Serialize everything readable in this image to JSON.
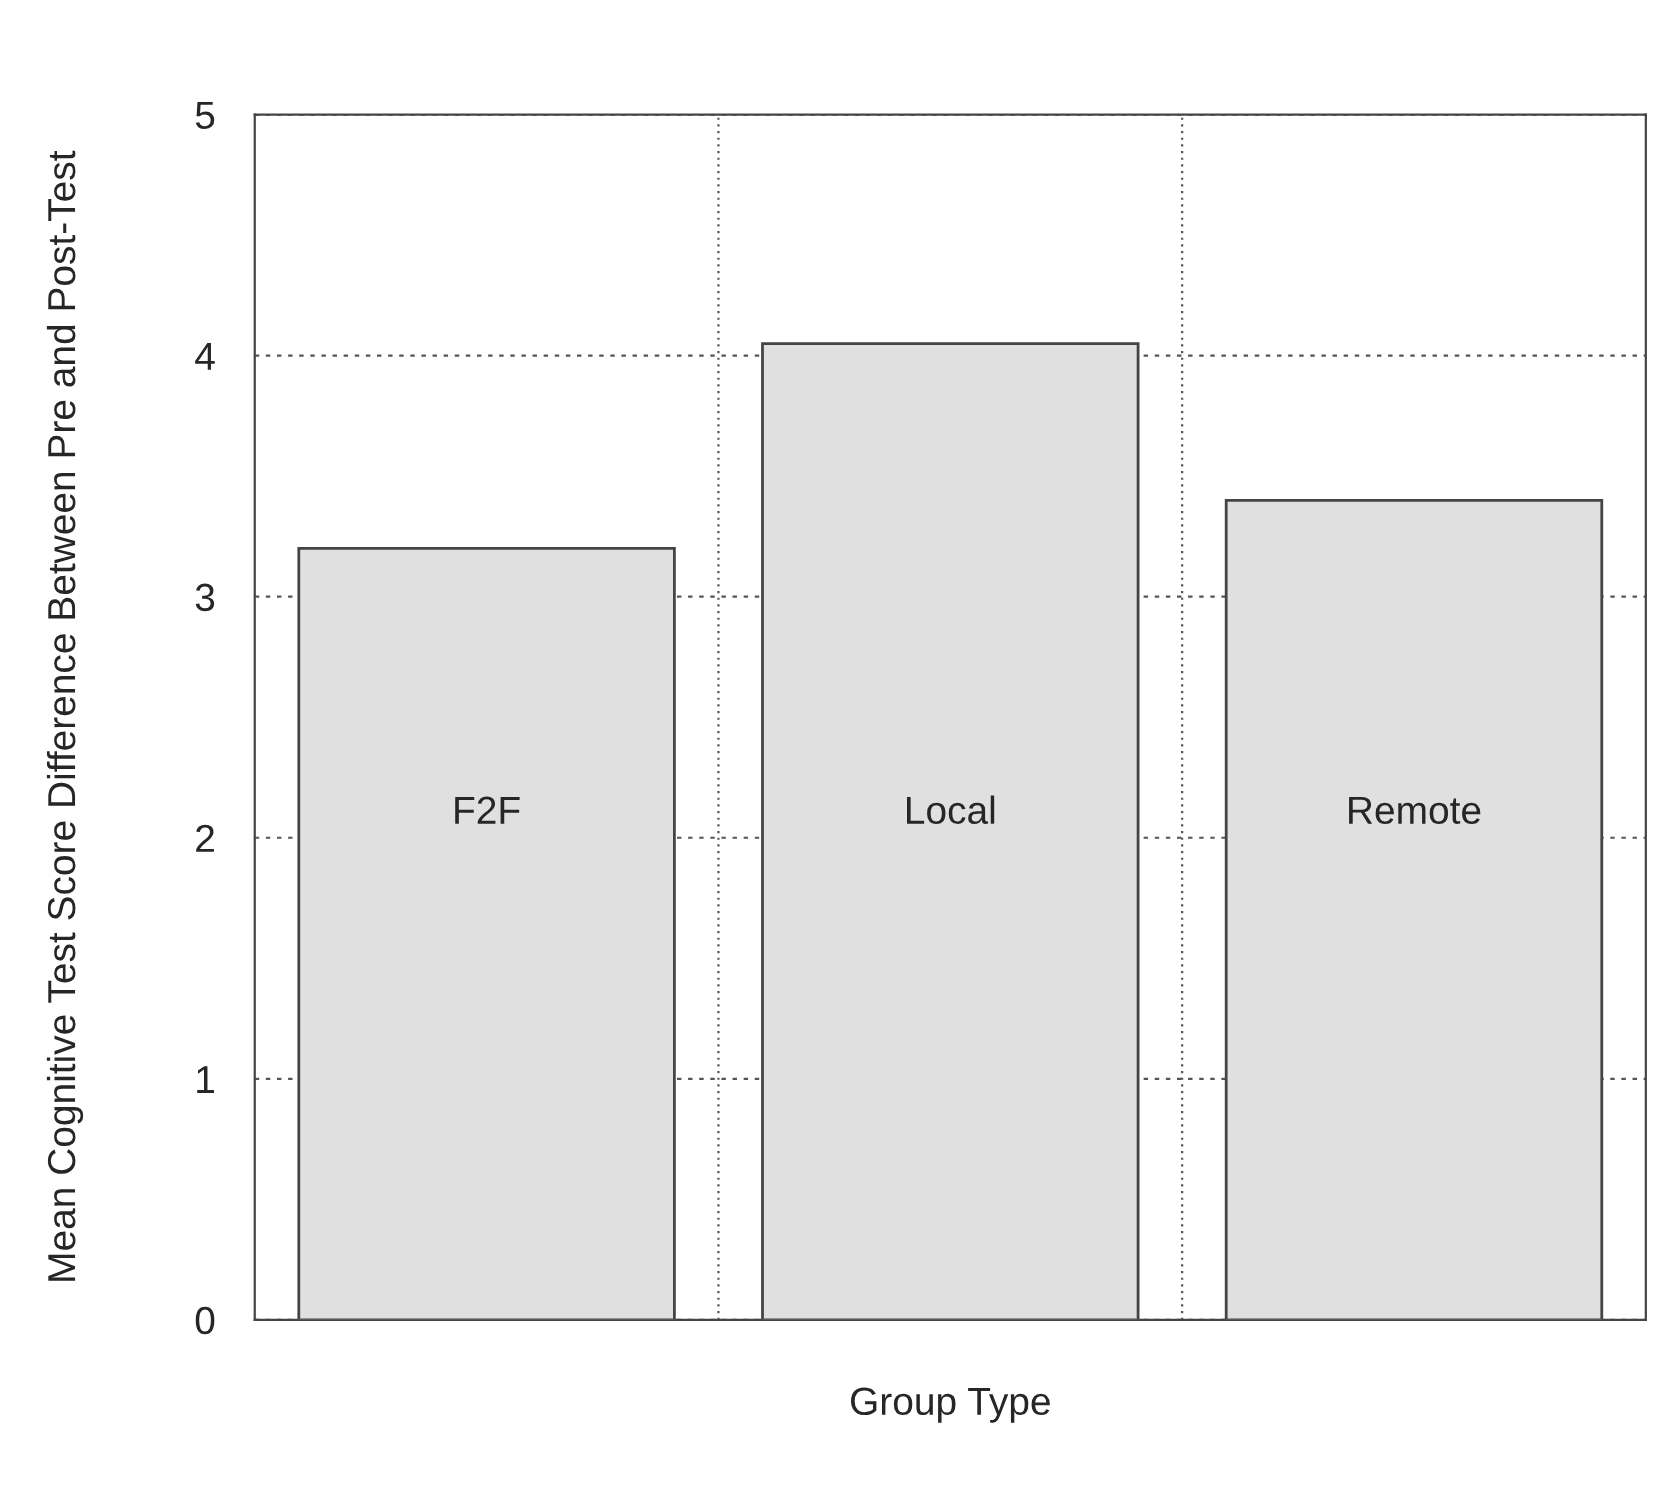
{
  "chart_data": {
    "type": "bar",
    "xlabel": "Group Type",
    "ylabel": "Mean Cognitive Test Score Difference Between Pre and Post-Test",
    "categories": [
      "F2F",
      "Local",
      "Remote"
    ],
    "values": [
      3.2,
      4.05,
      3.4
    ],
    "color": "#e0e0e0",
    "ylim": [
      0,
      5
    ],
    "yticks": [
      0,
      1,
      2,
      3,
      4,
      5
    ],
    "grid": true,
    "tick_labels": "y"
  }
}
